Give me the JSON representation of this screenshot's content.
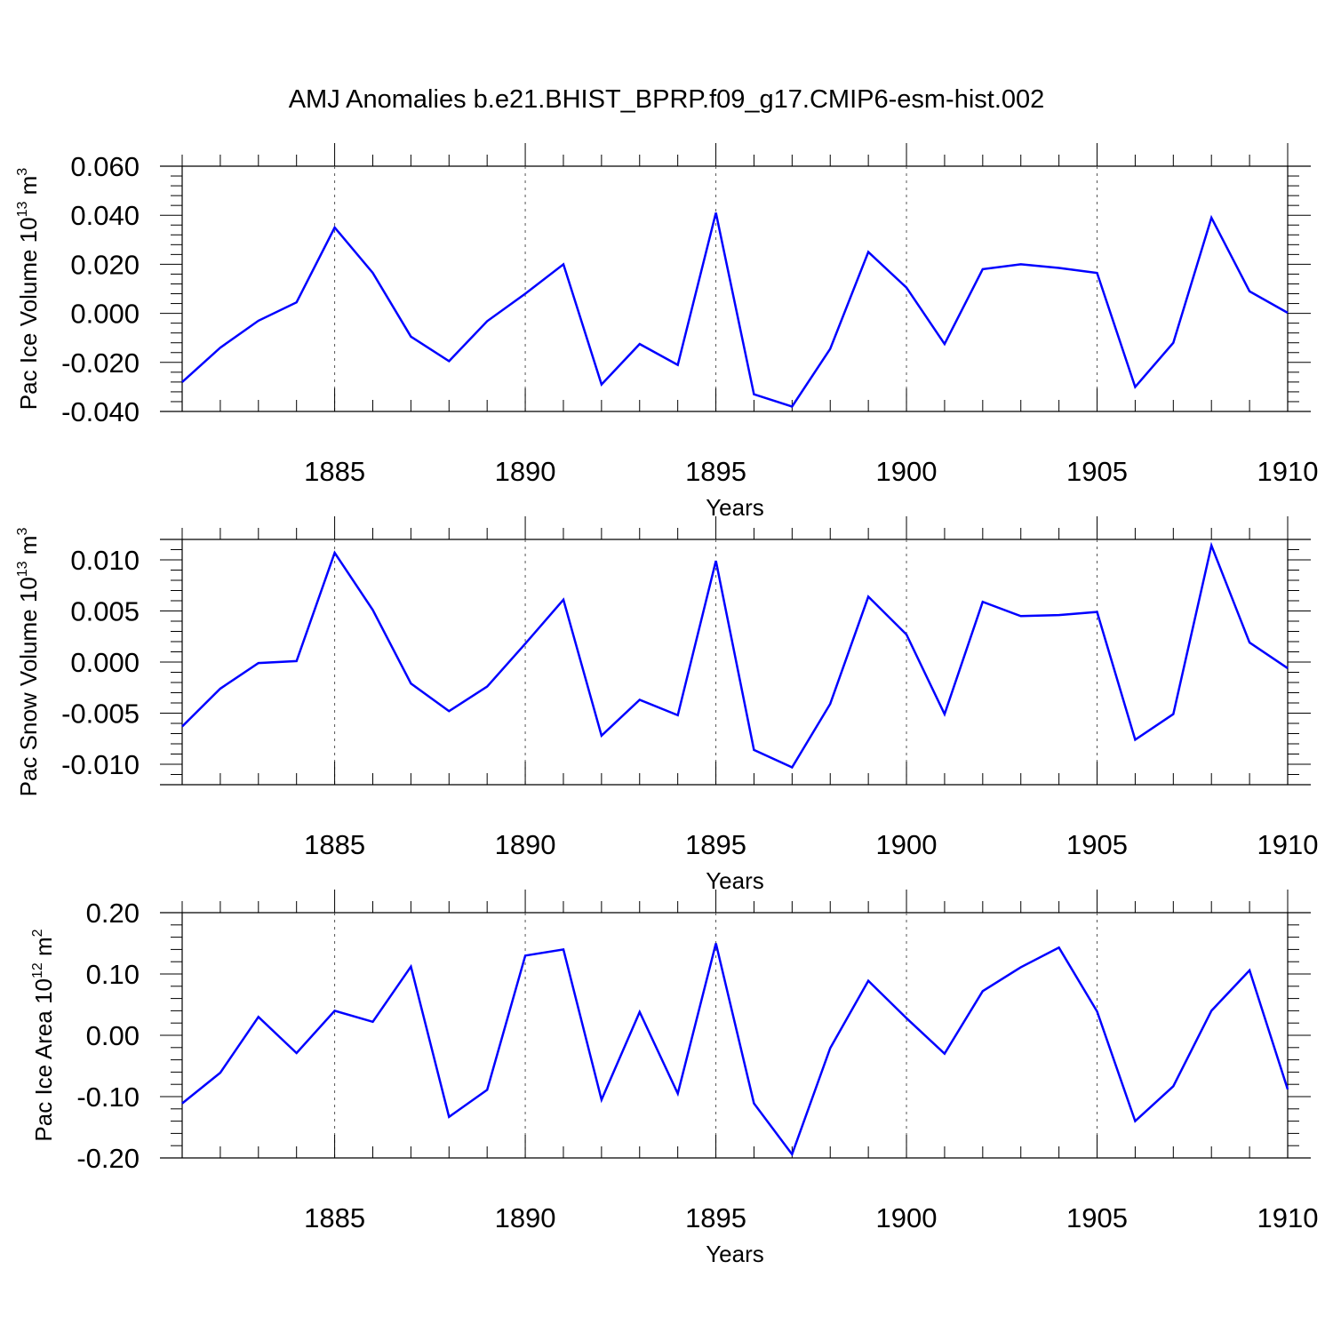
{
  "title": "AMJ Anomalies b.e21.BHIST_BPRP.f09_g17.CMIP6-esm-hist.002",
  "colors": {
    "series": "#0000ff",
    "axis": "#000000",
    "grid": "#555555"
  },
  "chart_data": [
    {
      "type": "line",
      "title": "",
      "xlabel": "Years",
      "ylabel": "Pac Ice Volume 10",
      "ylabel_exp": "13",
      "ylabel_unit": " m",
      "ylabel_unit_exp": "3",
      "xlim": [
        1881,
        1910
      ],
      "ylim": [
        -0.04,
        0.06
      ],
      "yticks": [
        -0.04,
        -0.02,
        0.0,
        0.02,
        0.04,
        0.06
      ],
      "ytick_labels": [
        "-0.040",
        "-0.020",
        "0.000",
        "0.020",
        "0.040",
        "0.060"
      ],
      "xticks": [
        1885,
        1890,
        1895,
        1900,
        1905,
        1910
      ],
      "xtick_labels": [
        "1885",
        "1890",
        "1895",
        "1900",
        "1905",
        "1910"
      ],
      "grid": "vertical dashed at major x ticks",
      "x": [
        1881,
        1882,
        1883,
        1884,
        1885,
        1886,
        1887,
        1888,
        1889,
        1890,
        1891,
        1892,
        1893,
        1894,
        1895,
        1896,
        1897,
        1898,
        1899,
        1900,
        1901,
        1902,
        1903,
        1904,
        1905,
        1906,
        1907,
        1908,
        1909,
        1910
      ],
      "series": [
        {
          "values": [
            -0.028,
            -0.014,
            -0.003,
            0.0045,
            0.035,
            0.0165,
            -0.0095,
            -0.0195,
            -0.0032,
            0.008,
            0.02,
            -0.029,
            -0.0125,
            -0.021,
            0.041,
            -0.033,
            -0.038,
            -0.0145,
            0.025,
            0.0105,
            -0.0125,
            0.018,
            0.02,
            0.0185,
            0.0165,
            -0.03,
            -0.012,
            0.039,
            0.009,
            0.0002
          ]
        }
      ]
    },
    {
      "type": "line",
      "title": "",
      "xlabel": "Years",
      "ylabel": "Pac Snow Volume 10",
      "ylabel_exp": "13",
      "ylabel_unit": " m",
      "ylabel_unit_exp": "3",
      "xlim": [
        1881,
        1910
      ],
      "ylim": [
        -0.012,
        0.012
      ],
      "yticks": [
        -0.01,
        -0.005,
        0.0,
        0.005,
        0.01
      ],
      "ytick_labels": [
        "-0.010",
        "-0.005",
        "0.000",
        "0.005",
        "0.010"
      ],
      "xticks": [
        1885,
        1890,
        1895,
        1900,
        1905,
        1910
      ],
      "xtick_labels": [
        "1885",
        "1890",
        "1895",
        "1900",
        "1905",
        "1910"
      ],
      "grid": "vertical dashed at major x ticks",
      "x": [
        1881,
        1882,
        1883,
        1884,
        1885,
        1886,
        1887,
        1888,
        1889,
        1890,
        1891,
        1892,
        1893,
        1894,
        1895,
        1896,
        1897,
        1898,
        1899,
        1900,
        1901,
        1902,
        1903,
        1904,
        1905,
        1906,
        1907,
        1908,
        1909,
        1910
      ],
      "series": [
        {
          "values": [
            -0.0063,
            -0.0026,
            -0.0001,
            0.0001,
            0.0107,
            0.0051,
            -0.0021,
            -0.0048,
            -0.0024,
            0.0018,
            0.0061,
            -0.0072,
            -0.0037,
            -0.0052,
            0.0099,
            -0.0086,
            -0.0103,
            -0.0041,
            0.0064,
            0.0027,
            -0.0051,
            0.0059,
            0.0045,
            0.0046,
            0.0049,
            -0.0076,
            -0.0051,
            0.0114,
            0.0019,
            -0.0006
          ]
        }
      ]
    },
    {
      "type": "line",
      "title": "",
      "xlabel": "Years",
      "ylabel": "Pac Ice Area 10",
      "ylabel_exp": "12",
      "ylabel_unit": " m",
      "ylabel_unit_exp": "2",
      "xlim": [
        1881,
        1910
      ],
      "ylim": [
        -0.2,
        0.2
      ],
      "yticks": [
        -0.2,
        -0.1,
        0.0,
        0.1,
        0.2
      ],
      "ytick_labels": [
        "-0.20",
        "-0.10",
        "0.00",
        "0.10",
        "0.20"
      ],
      "xticks": [
        1885,
        1890,
        1895,
        1900,
        1905,
        1910
      ],
      "xtick_labels": [
        "1885",
        "1890",
        "1895",
        "1900",
        "1905",
        "1910"
      ],
      "grid": "vertical dashed at major x ticks",
      "x": [
        1881,
        1882,
        1883,
        1884,
        1885,
        1886,
        1887,
        1888,
        1889,
        1890,
        1891,
        1892,
        1893,
        1894,
        1895,
        1896,
        1897,
        1898,
        1899,
        1900,
        1901,
        1902,
        1903,
        1904,
        1905,
        1906,
        1907,
        1908,
        1909,
        1910
      ],
      "series": [
        {
          "values": [
            -0.111,
            -0.061,
            0.03,
            -0.029,
            0.04,
            0.022,
            0.112,
            -0.133,
            -0.089,
            0.13,
            0.14,
            -0.105,
            0.038,
            -0.095,
            0.15,
            -0.111,
            -0.194,
            -0.021,
            0.089,
            0.028,
            -0.03,
            0.072,
            0.111,
            0.143,
            0.039,
            -0.14,
            -0.083,
            0.04,
            0.106,
            -0.088
          ]
        }
      ]
    }
  ]
}
